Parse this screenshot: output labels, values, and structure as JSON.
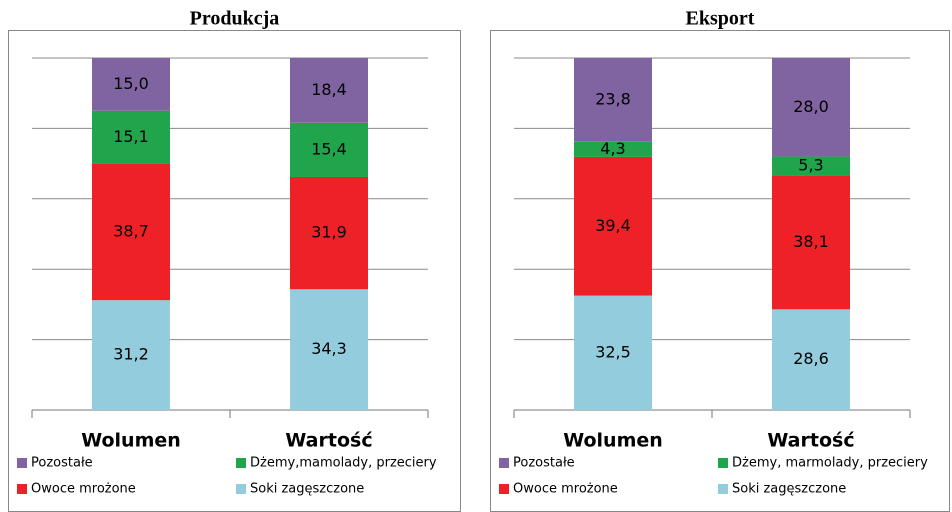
{
  "chart_data": [
    {
      "type": "bar",
      "stacked": true,
      "title": "Produkcja",
      "categories": [
        "Wolumen",
        "Wartość"
      ],
      "series": [
        {
          "name": "Pozostałe",
          "color": "#8064a2",
          "values": [
            15.0,
            18.4
          ],
          "value_labels": [
            "15,0",
            "18,4"
          ]
        },
        {
          "name": "Dżemy,mamolady, przeciery",
          "color": "#21a54c",
          "values": [
            15.1,
            15.4
          ],
          "value_labels": [
            "15,1",
            "15,4"
          ]
        },
        {
          "name": "Owoce mrożone",
          "color": "#ee2226",
          "values": [
            38.7,
            31.9
          ],
          "value_labels": [
            "38,7",
            "31,9"
          ]
        },
        {
          "name": "Soki zagęszczone",
          "color": "#93cddd",
          "values": [
            31.2,
            34.3
          ],
          "value_labels": [
            "31,2",
            "34,3"
          ]
        }
      ],
      "ylim": [
        0,
        100
      ],
      "yticks": [
        0,
        20,
        40,
        60,
        80,
        100
      ],
      "show_ytick_labels": false,
      "grid": true,
      "legend": "bottom"
    },
    {
      "type": "bar",
      "stacked": true,
      "title": "Eksport",
      "categories": [
        "Wolumen",
        "Wartość"
      ],
      "series": [
        {
          "name": "Pozostałe",
          "color": "#8064a2",
          "values": [
            23.8,
            28.0
          ],
          "value_labels": [
            "23,8",
            "28,0"
          ]
        },
        {
          "name": "Dżemy, marmolady, przeciery",
          "color": "#21a54c",
          "values": [
            4.3,
            5.3
          ],
          "value_labels": [
            "4,3",
            "5,3"
          ]
        },
        {
          "name": "Owoce mrożone",
          "color": "#ee2226",
          "values": [
            39.4,
            38.1
          ],
          "value_labels": [
            "39,4",
            "38,1"
          ]
        },
        {
          "name": "Soki zagęszczone",
          "color": "#93cddd",
          "values": [
            32.5,
            28.6
          ],
          "value_labels": [
            "32,5",
            "28,6"
          ]
        }
      ],
      "ylim": [
        0,
        100
      ],
      "yticks": [
        0,
        20,
        40,
        60,
        80,
        100
      ],
      "show_ytick_labels": false,
      "grid": true,
      "legend": "bottom"
    }
  ]
}
